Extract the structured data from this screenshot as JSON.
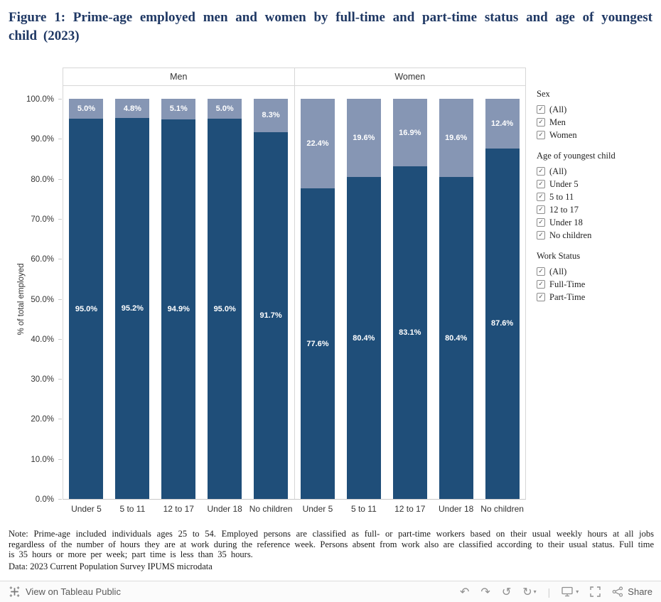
{
  "page": {
    "title": "Figure 1: Prime-age employed men and women by full-time and part-time status and age of youngest child (2023)"
  },
  "chart_data": {
    "type": "bar",
    "stacked": true,
    "ylabel": "% of total employed",
    "ylim": [
      0,
      100
    ],
    "grid": false,
    "yticks": [
      "0.0%",
      "10.0%",
      "20.0%",
      "30.0%",
      "40.0%",
      "50.0%",
      "60.0%",
      "70.0%",
      "80.0%",
      "90.0%",
      "100.0%"
    ],
    "categories": [
      "Under 5",
      "5 to 11",
      "12 to 17",
      "Under 18",
      "No children"
    ],
    "panels": [
      {
        "label": "Men",
        "series": [
          {
            "name": "Full-Time",
            "color": "#1f4e79",
            "values": [
              95.0,
              95.2,
              94.9,
              95.0,
              91.7
            ]
          },
          {
            "name": "Part-Time",
            "color": "#8696b4",
            "values": [
              5.0,
              4.8,
              5.1,
              5.0,
              8.3
            ]
          }
        ]
      },
      {
        "label": "Women",
        "series": [
          {
            "name": "Full-Time",
            "color": "#1f4e79",
            "values": [
              77.6,
              80.4,
              83.1,
              80.4,
              87.6
            ]
          },
          {
            "name": "Part-Time",
            "color": "#8696b4",
            "values": [
              22.4,
              19.6,
              16.9,
              19.6,
              12.4
            ]
          }
        ]
      }
    ]
  },
  "filters": [
    {
      "title": "Sex",
      "items": [
        "(All)",
        "Men",
        "Women"
      ]
    },
    {
      "title": "Age of youngest child",
      "items": [
        "(All)",
        "Under 5",
        "5 to 11",
        "12 to 17",
        "Under 18",
        "No children"
      ]
    },
    {
      "title": "Work Status",
      "items": [
        "(All)",
        "Full-Time",
        "Part-Time"
      ]
    }
  ],
  "notes": {
    "note_text": "Note: Prime-age included individuals ages 25 to 54. Employed persons are classified as full- or part-time workers based on their usual weekly hours at all jobs regardless of the number of hours they are at work during the reference week. Persons absent from work also are classified according to their usual status. Full time is 35 hours or more per week; part time is less than 35 hours.",
    "data_text": "Data: 2023 Current Population Survey IPUMS microdata"
  },
  "toolbar": {
    "view_label": "View on Tableau Public",
    "share_label": "Share",
    "checkmark": "✓"
  }
}
